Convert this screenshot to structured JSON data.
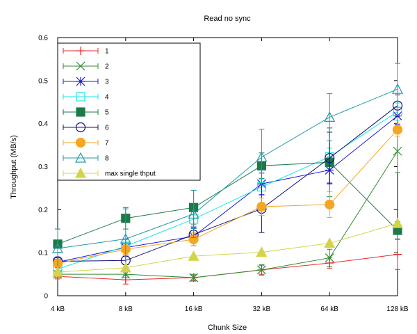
{
  "chart_data": {
    "type": "line",
    "title": "Read no sync",
    "xlabel": "Chunk Size",
    "ylabel": "Throughput (MB/s)",
    "categories": [
      "4 kB",
      "8 kB",
      "16 kB",
      "32 kB",
      "64 kB",
      "128 kB"
    ],
    "ylim": [
      0,
      0.6
    ],
    "yticks": [
      "0",
      "0.1",
      "0.2",
      "0.3",
      "0.4",
      "0.5",
      "0.6"
    ],
    "grid": false,
    "legend_position": "top-left",
    "series": [
      {
        "name": "1",
        "color": "#e8282a",
        "marker": "plus",
        "values": [
          0.045,
          0.037,
          0.042,
          0.06,
          0.076,
          0.096
        ],
        "err": [
          0.006,
          0.01,
          0.006,
          0.01,
          0.012,
          0.035
        ]
      },
      {
        "name": "2",
        "color": "#2f8a2f",
        "marker": "x",
        "values": [
          0.05,
          0.05,
          0.042,
          0.06,
          0.088,
          0.336
        ],
        "err": [
          0.008,
          0.008,
          0.008,
          0.012,
          0.02,
          0.05
        ]
      },
      {
        "name": "3",
        "color": "#1a1ad9",
        "marker": "asterisk",
        "values": [
          0.078,
          0.112,
          0.138,
          0.26,
          0.292,
          0.418
        ],
        "err": [
          0.01,
          0.02,
          0.022,
          0.025,
          0.03,
          0.02
        ]
      },
      {
        "name": "4",
        "color": "#19e6e6",
        "marker": "square-open",
        "values": [
          0.062,
          0.115,
          0.178,
          0.253,
          0.323,
          0.428
        ],
        "err": [
          0.01,
          0.015,
          0.022,
          0.02,
          0.02,
          0.02
        ]
      },
      {
        "name": "5",
        "color": "#1a7a4a",
        "marker": "square-filled",
        "values": [
          0.12,
          0.18,
          0.205,
          0.302,
          0.31,
          0.152
        ],
        "err": [
          0.035,
          0.025,
          0.04,
          0.03,
          0.08,
          0.02
        ]
      },
      {
        "name": "6",
        "color": "#11117a",
        "marker": "circle-open",
        "values": [
          0.08,
          0.082,
          0.142,
          0.202,
          0.32,
          0.442
        ],
        "err": [
          0.01,
          0.01,
          0.015,
          0.055,
          0.06,
          0.025
        ]
      },
      {
        "name": "7",
        "color": "#f5a623",
        "marker": "circle-filled",
        "values": [
          0.075,
          0.108,
          0.131,
          0.207,
          0.212,
          0.386
        ],
        "err": [
          0.01,
          0.012,
          0.015,
          0.02,
          0.03,
          0.015
        ]
      },
      {
        "name": "8",
        "color": "#1f9aa8",
        "marker": "triangle-open",
        "values": [
          0.11,
          0.132,
          0.19,
          0.322,
          0.415,
          0.48
        ],
        "err": [
          0.045,
          0.07,
          0.055,
          0.065,
          0.055,
          0.06
        ]
      },
      {
        "name": "max single thput",
        "color": "#d4d44a",
        "marker": "triangle-filled",
        "values": [
          0.055,
          0.065,
          0.092,
          0.101,
          0.122,
          0.168
        ],
        "err": [
          0,
          0,
          0,
          0,
          0,
          0
        ]
      }
    ]
  }
}
